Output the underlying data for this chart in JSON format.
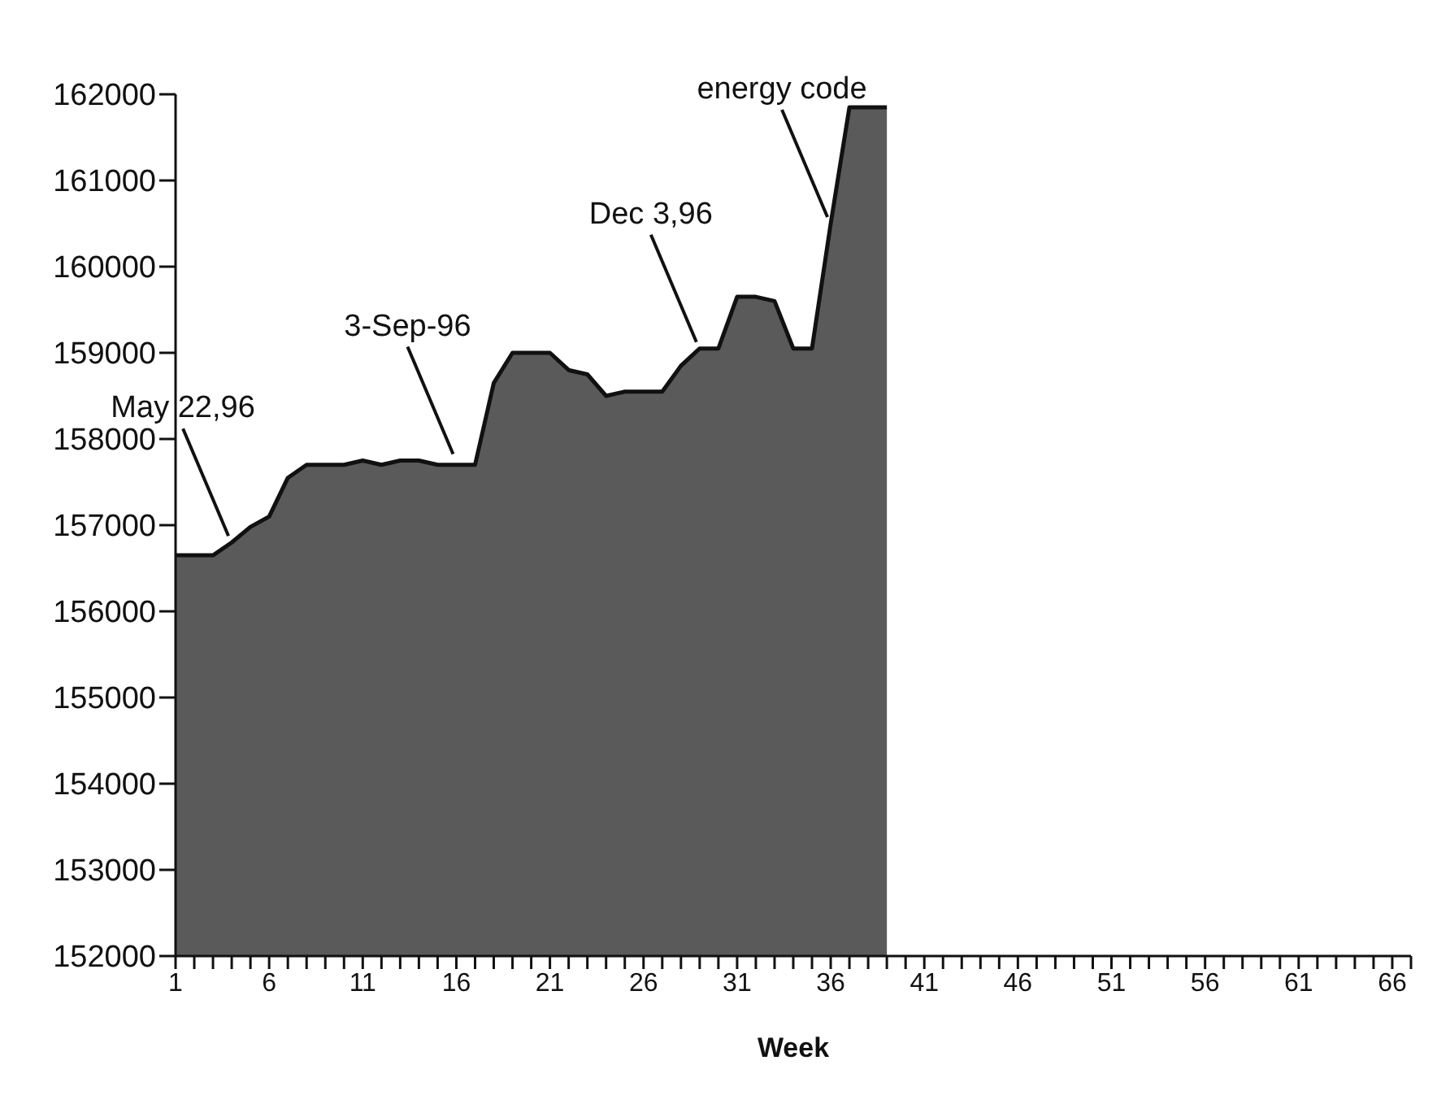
{
  "chart_data": {
    "type": "area",
    "xlabel": "Week",
    "x": [
      1,
      2,
      3,
      4,
      5,
      6,
      7,
      8,
      9,
      10,
      11,
      12,
      13,
      14,
      15,
      16,
      17,
      18,
      19,
      20,
      21,
      22,
      23,
      24,
      25,
      26,
      27,
      28,
      29,
      30,
      31,
      32,
      33,
      34,
      35,
      36,
      37,
      38,
      39
    ],
    "values": [
      156650,
      156650,
      156650,
      156800,
      156980,
      157100,
      157550,
      157700,
      157700,
      157700,
      157750,
      157700,
      157750,
      157750,
      157700,
      157700,
      157700,
      158650,
      159000,
      159000,
      159000,
      158800,
      158750,
      158500,
      158550,
      158550,
      158550,
      158850,
      159050,
      159050,
      159650,
      159650,
      159600,
      159050,
      159050,
      160500,
      161850,
      161850,
      161850
    ],
    "color": "#5a5a5a",
    "xlim": [
      1,
      67
    ],
    "xticks": [
      1,
      {
        "value": 2,
        "label": null
      },
      {
        "value": 3,
        "label": null
      },
      {
        "value": 4,
        "label": null
      },
      {
        "value": 5,
        "label": null
      },
      6,
      {
        "value": 7,
        "label": null
      },
      {
        "value": 8,
        "label": null
      },
      {
        "value": 9,
        "label": null
      },
      {
        "value": 10,
        "label": null
      },
      11,
      {
        "value": 12,
        "label": null
      },
      {
        "value": 13,
        "label": null
      },
      {
        "value": 14,
        "label": null
      },
      {
        "value": 15,
        "label": null
      },
      16,
      {
        "value": 17,
        "label": null
      },
      {
        "value": 18,
        "label": null
      },
      {
        "value": 19,
        "label": null
      },
      {
        "value": 20,
        "label": null
      },
      21,
      {
        "value": 22,
        "label": null
      },
      {
        "value": 23,
        "label": null
      },
      {
        "value": 24,
        "label": null
      },
      {
        "value": 25,
        "label": null
      },
      26,
      {
        "value": 27,
        "label": null
      },
      {
        "value": 28,
        "label": null
      },
      {
        "value": 29,
        "label": null
      },
      {
        "value": 30,
        "label": null
      },
      31,
      {
        "value": 32,
        "label": null
      },
      {
        "value": 33,
        "label": null
      },
      {
        "value": 34,
        "label": null
      },
      {
        "value": 35,
        "label": null
      },
      36,
      {
        "value": 37,
        "label": null
      },
      {
        "value": 38,
        "label": null
      },
      {
        "value": 39,
        "label": null
      },
      {
        "value": 40,
        "label": null
      },
      41,
      {
        "value": 42,
        "label": null
      },
      {
        "value": 43,
        "label": null
      },
      {
        "value": 44,
        "label": null
      },
      {
        "value": 45,
        "label": null
      },
      46,
      {
        "value": 47,
        "label": null
      },
      {
        "value": 48,
        "label": null
      },
      {
        "value": 49,
        "label": null
      },
      {
        "value": 50,
        "label": null
      },
      51,
      {
        "value": 52,
        "label": null
      },
      {
        "value": 53,
        "label": null
      },
      {
        "value": 54,
        "label": null
      },
      {
        "value": 55,
        "label": null
      },
      56,
      {
        "value": 57,
        "label": null
      },
      {
        "value": 58,
        "label": null
      },
      {
        "value": 59,
        "label": null
      },
      {
        "value": 60,
        "label": null
      },
      61,
      {
        "value": 62,
        "label": null
      },
      {
        "value": 63,
        "label": null
      },
      {
        "value": 64,
        "label": null
      },
      {
        "value": 65,
        "label": null
      },
      66,
      {
        "value": 67,
        "label": null
      }
    ],
    "ylim": [
      152000,
      162000
    ],
    "yticks": [
      152000,
      153000,
      154000,
      155000,
      156000,
      157000,
      158000,
      159000,
      160000,
      161000,
      162000
    ],
    "grid": false,
    "legend": false,
    "annotations": [
      {
        "text": "May 22,96",
        "x": 4,
        "y": 156800
      },
      {
        "text": "3-Sep-96",
        "x": 16,
        "y": 157750
      },
      {
        "text": "Dec 3,96",
        "x": 29,
        "y": 159050
      },
      {
        "text": "energy code",
        "x": 36,
        "y": 160500
      }
    ]
  }
}
